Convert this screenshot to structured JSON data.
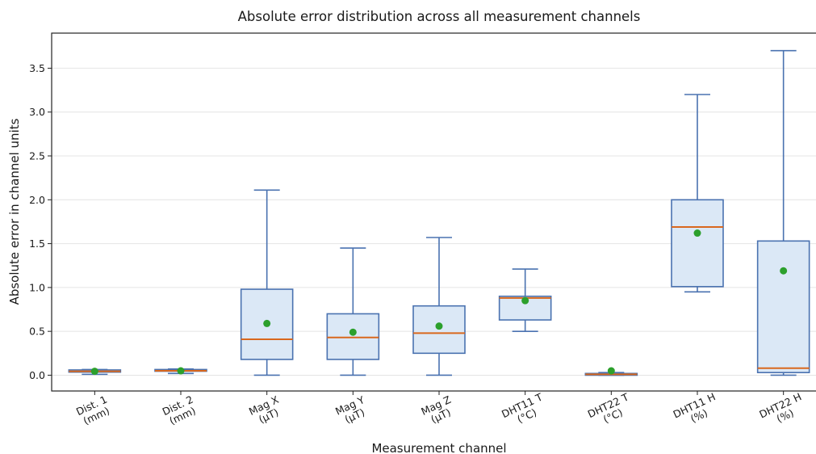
{
  "chart_data": {
    "type": "box",
    "title": "Absolute error distribution across all measurement channels",
    "xlabel": "Measurement channel",
    "ylabel": "Absolute error in channel units",
    "ylim": [
      -0.18,
      3.9
    ],
    "yticks": [
      "0.0",
      "0.5",
      "1.0",
      "1.5",
      "2.0",
      "2.5",
      "3.0",
      "3.5"
    ],
    "grid": "horizontal",
    "colors": {
      "box_fill": "#dbe8f6",
      "box_edge": "#4a72b0",
      "median": "#d9681e",
      "mean": "#2ca02c"
    },
    "boxes": [
      {
        "label": [
          "Dist. 1",
          "(mm)"
        ],
        "whisker_low": 0.01,
        "q1": 0.035,
        "median": 0.045,
        "q3": 0.06,
        "whisker_high": 0.065,
        "mean": 0.045
      },
      {
        "label": [
          "Dist. 2",
          "(mm)"
        ],
        "whisker_low": 0.02,
        "q1": 0.045,
        "median": 0.05,
        "q3": 0.065,
        "whisker_high": 0.07,
        "mean": 0.05
      },
      {
        "label": [
          "Mag X",
          "(µT)"
        ],
        "whisker_low": 0.0,
        "q1": 0.18,
        "median": 0.41,
        "q3": 0.98,
        "whisker_high": 2.11,
        "mean": 0.59
      },
      {
        "label": [
          "Mag Y",
          "(µT)"
        ],
        "whisker_low": 0.0,
        "q1": 0.18,
        "median": 0.43,
        "q3": 0.7,
        "whisker_high": 1.45,
        "mean": 0.49
      },
      {
        "label": [
          "Mag Z",
          "(µT)"
        ],
        "whisker_low": 0.0,
        "q1": 0.25,
        "median": 0.48,
        "q3": 0.79,
        "whisker_high": 1.57,
        "mean": 0.56
      },
      {
        "label": [
          "DHT11 T",
          "(°C)"
        ],
        "whisker_low": 0.5,
        "q1": 0.63,
        "median": 0.88,
        "q3": 0.9,
        "whisker_high": 1.21,
        "mean": 0.85
      },
      {
        "label": [
          "DHT22 T",
          "(°C)"
        ],
        "whisker_low": 0.0,
        "q1": 0.0,
        "median": 0.01,
        "q3": 0.02,
        "whisker_high": 0.03,
        "mean": 0.05
      },
      {
        "label": [
          "DHT11 H",
          "(%)"
        ],
        "whisker_low": 0.95,
        "q1": 1.01,
        "median": 1.69,
        "q3": 2.0,
        "whisker_high": 3.2,
        "mean": 1.62
      },
      {
        "label": [
          "DHT22 H",
          "(%)"
        ],
        "whisker_low": 0.0,
        "q1": 0.03,
        "median": 0.08,
        "q3": 1.53,
        "whisker_high": 3.7,
        "mean": 1.19
      }
    ]
  }
}
